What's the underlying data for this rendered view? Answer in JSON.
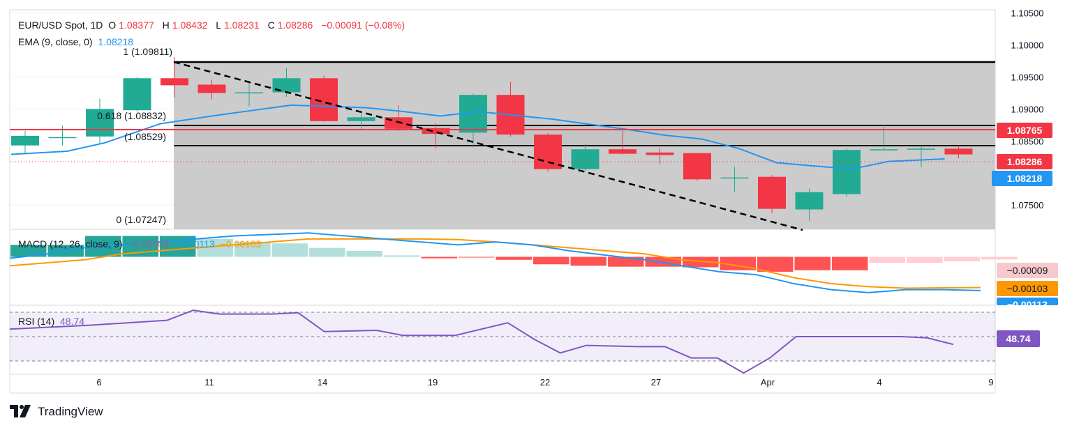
{
  "header": {
    "symbol": "EUR/USD Spot, 1D",
    "o_label": "O",
    "o": "1.08377",
    "h_label": "H",
    "h": "1.08432",
    "l_label": "L",
    "l": "1.08231",
    "c_label": "C",
    "c": "1.08286",
    "change": "−0.00091 (−0.08%)",
    "ema_label": "EMA (9, close, 0)",
    "ema_value": "1.08218",
    "macd_label": "MACD (12, 26, close, 9)",
    "macd_hist": "−0.00009",
    "macd_line": "−0.00113",
    "macd_signal": "−0.00103",
    "rsi_label": "RSI (14)",
    "rsi_value": "48.74"
  },
  "price_axis": {
    "ticks": [
      "1.10500",
      "1.10000",
      "1.09500",
      "1.09000",
      "1.08500",
      "1.07500"
    ],
    "tick_values": [
      1.105,
      1.1,
      1.095,
      1.09,
      1.085,
      1.075
    ]
  },
  "tags": {
    "resistance": "1.08765",
    "close": "1.08286",
    "ema": "1.08218",
    "macd_hist": "−0.00009",
    "macd_signal": "−0.00103",
    "macd_line": "−0.00113",
    "rsi": "48.74"
  },
  "fib_labels": {
    "level_1": "1 (1.09811)",
    "level_0618": "0.618 (1.08832)",
    "level_0786": "(1.08529)",
    "level_0": "0 (1.07247)"
  },
  "x_axis": [
    "6",
    "11",
    "14",
    "19",
    "22",
    "27",
    "Apr",
    "4",
    "9"
  ],
  "footer": {
    "brand": "TradingView"
  },
  "colors": {
    "up": "#22ab94",
    "down": "#f23645",
    "ema": "#2196f3",
    "macd": "#2196f3",
    "signal": "#ff9800",
    "rsi": "#7e57c2",
    "resistance": "#f23645"
  },
  "chart_data": {
    "type": "candlestick",
    "timeframe": "1D",
    "ylim": [
      1.0712,
      1.1055
    ],
    "candles": [
      {
        "o": 1.0843,
        "h": 1.0866,
        "l": 1.0831,
        "c": 1.0858
      },
      {
        "o": 1.0856,
        "h": 1.0874,
        "l": 1.0843,
        "c": 1.0856
      },
      {
        "o": 1.0857,
        "h": 1.0916,
        "l": 1.0845,
        "c": 1.09
      },
      {
        "o": 1.0898,
        "h": 1.095,
        "l": 1.0896,
        "c": 1.0948
      },
      {
        "o": 1.0948,
        "h": 1.0981,
        "l": 1.0918,
        "c": 1.0937
      },
      {
        "o": 1.0938,
        "h": 1.0946,
        "l": 1.0915,
        "c": 1.0925
      },
      {
        "o": 1.0925,
        "h": 1.0941,
        "l": 1.0904,
        "c": 1.0926
      },
      {
        "o": 1.0926,
        "h": 1.0964,
        "l": 1.0919,
        "c": 1.0948
      },
      {
        "o": 1.0948,
        "h": 1.0952,
        "l": 1.088,
        "c": 1.0881
      },
      {
        "o": 1.0881,
        "h": 1.0893,
        "l": 1.0869,
        "c": 1.0887
      },
      {
        "o": 1.0887,
        "h": 1.0906,
        "l": 1.0866,
        "c": 1.0869
      },
      {
        "o": 1.087,
        "h": 1.0878,
        "l": 1.0838,
        "c": 1.0861
      },
      {
        "o": 1.0863,
        "h": 1.0924,
        "l": 1.084,
        "c": 1.0922
      },
      {
        "o": 1.0922,
        "h": 1.0942,
        "l": 1.0857,
        "c": 1.086
      },
      {
        "o": 1.086,
        "h": 1.0862,
        "l": 1.0802,
        "c": 1.0806
      },
      {
        "o": 1.0806,
        "h": 1.0845,
        "l": 1.0803,
        "c": 1.0837
      },
      {
        "o": 1.0837,
        "h": 1.0866,
        "l": 1.0829,
        "c": 1.083
      },
      {
        "o": 1.0832,
        "h": 1.0839,
        "l": 1.0814,
        "c": 1.0828
      },
      {
        "o": 1.0831,
        "h": 1.0831,
        "l": 1.0788,
        "c": 1.079
      },
      {
        "o": 1.0793,
        "h": 1.081,
        "l": 1.077,
        "c": 1.0793
      },
      {
        "o": 1.0794,
        "h": 1.0797,
        "l": 1.0737,
        "c": 1.0744
      },
      {
        "o": 1.0743,
        "h": 1.0776,
        "l": 1.0725,
        "c": 1.077
      },
      {
        "o": 1.0767,
        "h": 1.0838,
        "l": 1.0763,
        "c": 1.0836
      },
      {
        "o": 1.0836,
        "h": 1.0876,
        "l": 1.0836,
        "c": 1.0837
      },
      {
        "o": 1.0837,
        "h": 1.0843,
        "l": 1.0809,
        "c": 1.0838
      },
      {
        "o": 1.0838,
        "h": 1.0843,
        "l": 1.0823,
        "c": 1.0829
      }
    ],
    "ema": [
      1.0829,
      1.0834,
      1.0847,
      1.0877,
      1.089,
      1.0898,
      1.0906,
      1.0902,
      1.0896,
      1.0889,
      1.0896,
      1.0884,
      1.0868,
      1.0859,
      1.0853,
      1.0838,
      1.0816,
      1.0811,
      1.0806,
      1.0818,
      1.0822
    ],
    "ema_x_index": [
      0,
      1.5,
      2.5,
      4,
      5.5,
      6.5,
      7.5,
      9.5,
      10.5,
      11.5,
      12.5,
      14.5,
      16.5,
      17.5,
      18.5,
      19.5,
      20.5,
      21.5,
      22.5,
      23.5,
      25
    ],
    "resistance_level": 1.08765,
    "fibonacci": [
      {
        "ratio": 1,
        "value": 1.09811
      },
      {
        "ratio": 0.618,
        "value": 1.08832
      },
      {
        "value": 1.08529
      },
      {
        "ratio": 0,
        "value": 1.07247
      }
    ],
    "trendline": {
      "from": {
        "index": 4.5,
        "value": 1.0981
      },
      "to": {
        "index": 21,
        "value": 1.0722
      }
    },
    "macd": {
      "ylim": [
        -0.0016,
        0.0009
      ],
      "histogram": [
        0.0004,
        0.0004,
        0.0007,
        0.0007,
        0.0007,
        0.0006,
        0.0005,
        0.00045,
        0.0003,
        0.0002,
        5e-05,
        -5e-05,
        -1e-05,
        -0.0001,
        -0.00025,
        -0.0003,
        -0.00033,
        -0.00033,
        -0.00035,
        -0.00045,
        -0.0005,
        -0.00045,
        -0.00045,
        -0.0002,
        -0.0002,
        -0.00015,
        -9e-05
      ],
      "macd_line": [
        -5e-05,
        0.0001,
        0.0003,
        0.0004,
        0.0005,
        0.0006,
        0.0007,
        0.00075,
        0.0008,
        0.0007,
        0.0006,
        0.0005,
        0.0004,
        0.0005,
        0.0004,
        0.0002,
        5e-05,
        -0.0001,
        -0.0003,
        -0.0005,
        -0.0006,
        -0.0009,
        -0.0011,
        -0.0012,
        -0.0011,
        -0.0011,
        -0.00113
      ],
      "signal_line": [
        -0.0003,
        -0.0002,
        -0.0001,
        0.0001,
        0.0002,
        0.0003,
        0.0004,
        0.0005,
        0.0006,
        0.0006,
        0.0006,
        0.0006,
        0.00058,
        0.0005,
        0.0004,
        0.0003,
        0.0002,
        0.0001,
        -0.0001,
        -0.0002,
        -0.0004,
        -0.0007,
        -0.0009,
        -0.001,
        -0.00105,
        -0.00104,
        -0.00103
      ]
    },
    "rsi": {
      "ylim": [
        25,
        80
      ],
      "upper_band": 70,
      "lower_band": 30,
      "values": [
        61,
        64,
        68,
        76,
        73,
        73,
        74,
        59,
        60,
        56,
        56,
        66,
        53,
        42,
        48,
        47,
        47,
        38,
        38,
        26,
        38,
        55,
        55,
        55,
        54,
        48.74
      ],
      "x_index": [
        0,
        3,
        6,
        7,
        8,
        10,
        11,
        12,
        14,
        15,
        17,
        19,
        20,
        21,
        22,
        24,
        25,
        26,
        27,
        28,
        29,
        30,
        32,
        34,
        35,
        36
      ]
    }
  }
}
